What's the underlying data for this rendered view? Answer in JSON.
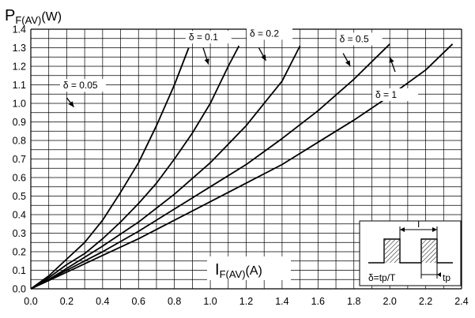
{
  "chart_data": {
    "type": "line",
    "title": "",
    "ylabel": {
      "main": "P",
      "sub": "F(AV)",
      "suffix": "(W)"
    },
    "xlabel": {
      "main": "I",
      "sub": "F(AV)",
      "suffix": "(A)"
    },
    "xlim": [
      0,
      2.4
    ],
    "ylim": [
      0,
      1.4
    ],
    "grid": true,
    "x_ticks": [
      "0.0",
      "0.2",
      "0.4",
      "0.6",
      "0.8",
      "1.0",
      "1.2",
      "1.4",
      "1.6",
      "1.8",
      "2.0",
      "2.2",
      "2.4"
    ],
    "y_ticks": [
      "0.0",
      "0.1",
      "0.2",
      "0.3",
      "0.4",
      "0.5",
      "0.6",
      "0.7",
      "0.8",
      "0.9",
      "1.0",
      "1.1",
      "1.2",
      "1.3",
      "1.4"
    ],
    "series": [
      {
        "name": "δ = 0.05",
        "x": [
          0,
          0.1,
          0.2,
          0.3,
          0.4,
          0.5,
          0.6,
          0.7,
          0.8,
          0.88
        ],
        "y": [
          0,
          0.07,
          0.16,
          0.25,
          0.37,
          0.52,
          0.68,
          0.88,
          1.1,
          1.3
        ]
      },
      {
        "name": "δ = 0.1",
        "x": [
          0,
          0.1,
          0.2,
          0.3,
          0.4,
          0.5,
          0.6,
          0.7,
          0.8,
          0.9,
          1.0,
          1.1,
          1.16
        ],
        "y": [
          0,
          0.06,
          0.13,
          0.19,
          0.27,
          0.36,
          0.46,
          0.57,
          0.7,
          0.84,
          1.0,
          1.2,
          1.31
        ]
      },
      {
        "name": "δ = 0.2",
        "x": [
          0,
          0.1,
          0.2,
          0.4,
          0.6,
          0.8,
          1.0,
          1.2,
          1.4,
          1.5
        ],
        "y": [
          0,
          0.05,
          0.11,
          0.23,
          0.36,
          0.51,
          0.68,
          0.88,
          1.12,
          1.31
        ]
      },
      {
        "name": "δ = 0.5",
        "x": [
          0,
          0.2,
          0.4,
          0.6,
          0.8,
          1.0,
          1.2,
          1.4,
          1.6,
          1.8,
          2.0
        ],
        "y": [
          0,
          0.1,
          0.2,
          0.31,
          0.43,
          0.55,
          0.67,
          0.81,
          0.96,
          1.13,
          1.32
        ]
      },
      {
        "name": "δ = 1",
        "x": [
          0,
          0.2,
          0.4,
          0.6,
          0.8,
          1.0,
          1.2,
          1.4,
          1.6,
          1.8,
          2.0,
          2.2,
          2.35
        ],
        "y": [
          0,
          0.09,
          0.18,
          0.27,
          0.37,
          0.47,
          0.57,
          0.67,
          0.79,
          0.91,
          1.04,
          1.18,
          1.32
        ]
      }
    ],
    "legend_labels": [
      "δ = 0.05",
      "δ = 0.1",
      "δ = 0.2",
      "δ = 0.5",
      "δ = 1"
    ],
    "inset": {
      "period_label": "T",
      "pulse_label": "tp",
      "formula": "δ=tp/T"
    }
  }
}
